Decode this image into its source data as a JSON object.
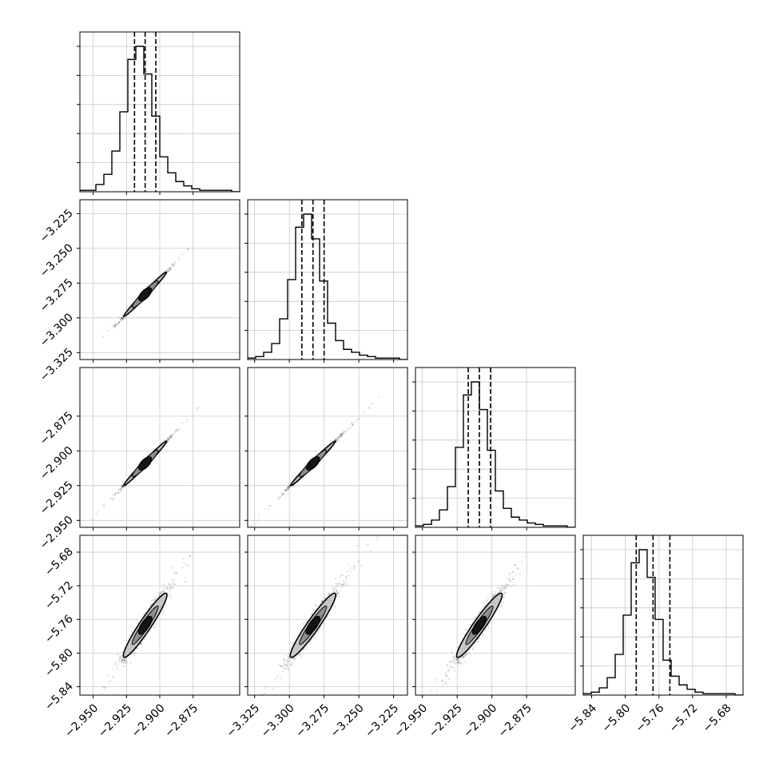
{
  "chart_data": {
    "type": "corner",
    "title": "",
    "parameters": [
      {
        "range": [
          -2.96,
          -2.84
        ],
        "ticks": [
          -2.95,
          -2.925,
          -2.9,
          -2.875
        ],
        "tick_labels": [
          "−2.950",
          "−2.925",
          "−2.900",
          "−2.875"
        ],
        "label": "",
        "quantiles": [
          -2.919,
          -2.911,
          -2.903
        ],
        "hist_heights": [
          0.01,
          0.01,
          0.05,
          0.12,
          0.28,
          0.55,
          0.91,
          1.0,
          0.81,
          0.52,
          0.24,
          0.13,
          0.07,
          0.04,
          0.02,
          0.01,
          0.01,
          0.01,
          0.01,
          0.0
        ]
      },
      {
        "range": [
          -3.33,
          -3.215
        ],
        "ticks": [
          -3.325,
          -3.3,
          -3.275,
          -3.25,
          -3.225
        ],
        "tick_labels": [
          "−3.325",
          "−3.300",
          "−3.275",
          "−3.250",
          "−3.225"
        ],
        "label": "",
        "quantiles": [
          -3.291,
          -3.283,
          -3.275
        ],
        "hist_heights": [
          0.01,
          0.02,
          0.05,
          0.11,
          0.28,
          0.55,
          0.91,
          1.0,
          0.83,
          0.54,
          0.25,
          0.13,
          0.07,
          0.05,
          0.03,
          0.02,
          0.01,
          0.01,
          0.01,
          0.0
        ]
      },
      {
        "range": [
          -2.955,
          -2.84
        ],
        "ticks": [
          -2.95,
          -2.925,
          -2.9,
          -2.875
        ],
        "tick_labels": [
          "−2.950",
          "−2.925",
          "−2.900",
          "−2.875"
        ],
        "label": "",
        "quantiles": [
          -2.917,
          -2.909,
          -2.901
        ],
        "hist_heights": [
          0.01,
          0.02,
          0.05,
          0.12,
          0.28,
          0.55,
          0.91,
          1.0,
          0.81,
          0.53,
          0.25,
          0.13,
          0.07,
          0.05,
          0.03,
          0.02,
          0.01,
          0.01,
          0.01,
          0.0
        ]
      },
      {
        "range": [
          -5.85,
          -5.66
        ],
        "ticks": [
          -5.84,
          -5.8,
          -5.76,
          -5.72,
          -5.68
        ],
        "tick_labels": [
          "−5.84",
          "−5.80",
          "−5.76",
          "−5.72",
          "−5.68"
        ],
        "label": "",
        "quantiles": [
          -5.787,
          -5.767,
          -5.747
        ],
        "hist_heights": [
          0.01,
          0.02,
          0.05,
          0.12,
          0.28,
          0.55,
          0.91,
          1.0,
          0.81,
          0.52,
          0.24,
          0.13,
          0.07,
          0.04,
          0.02,
          0.01,
          0.01,
          0.01,
          0.01,
          0.0
        ]
      }
    ],
    "hist_y_ticks": [
      0.2,
      0.4,
      0.6,
      0.8,
      1.0
    ],
    "grid": true,
    "contour_fill_colors": [
      "#c8c8c8",
      "#888888",
      "#000000"
    ],
    "sample_color": "#000000"
  }
}
